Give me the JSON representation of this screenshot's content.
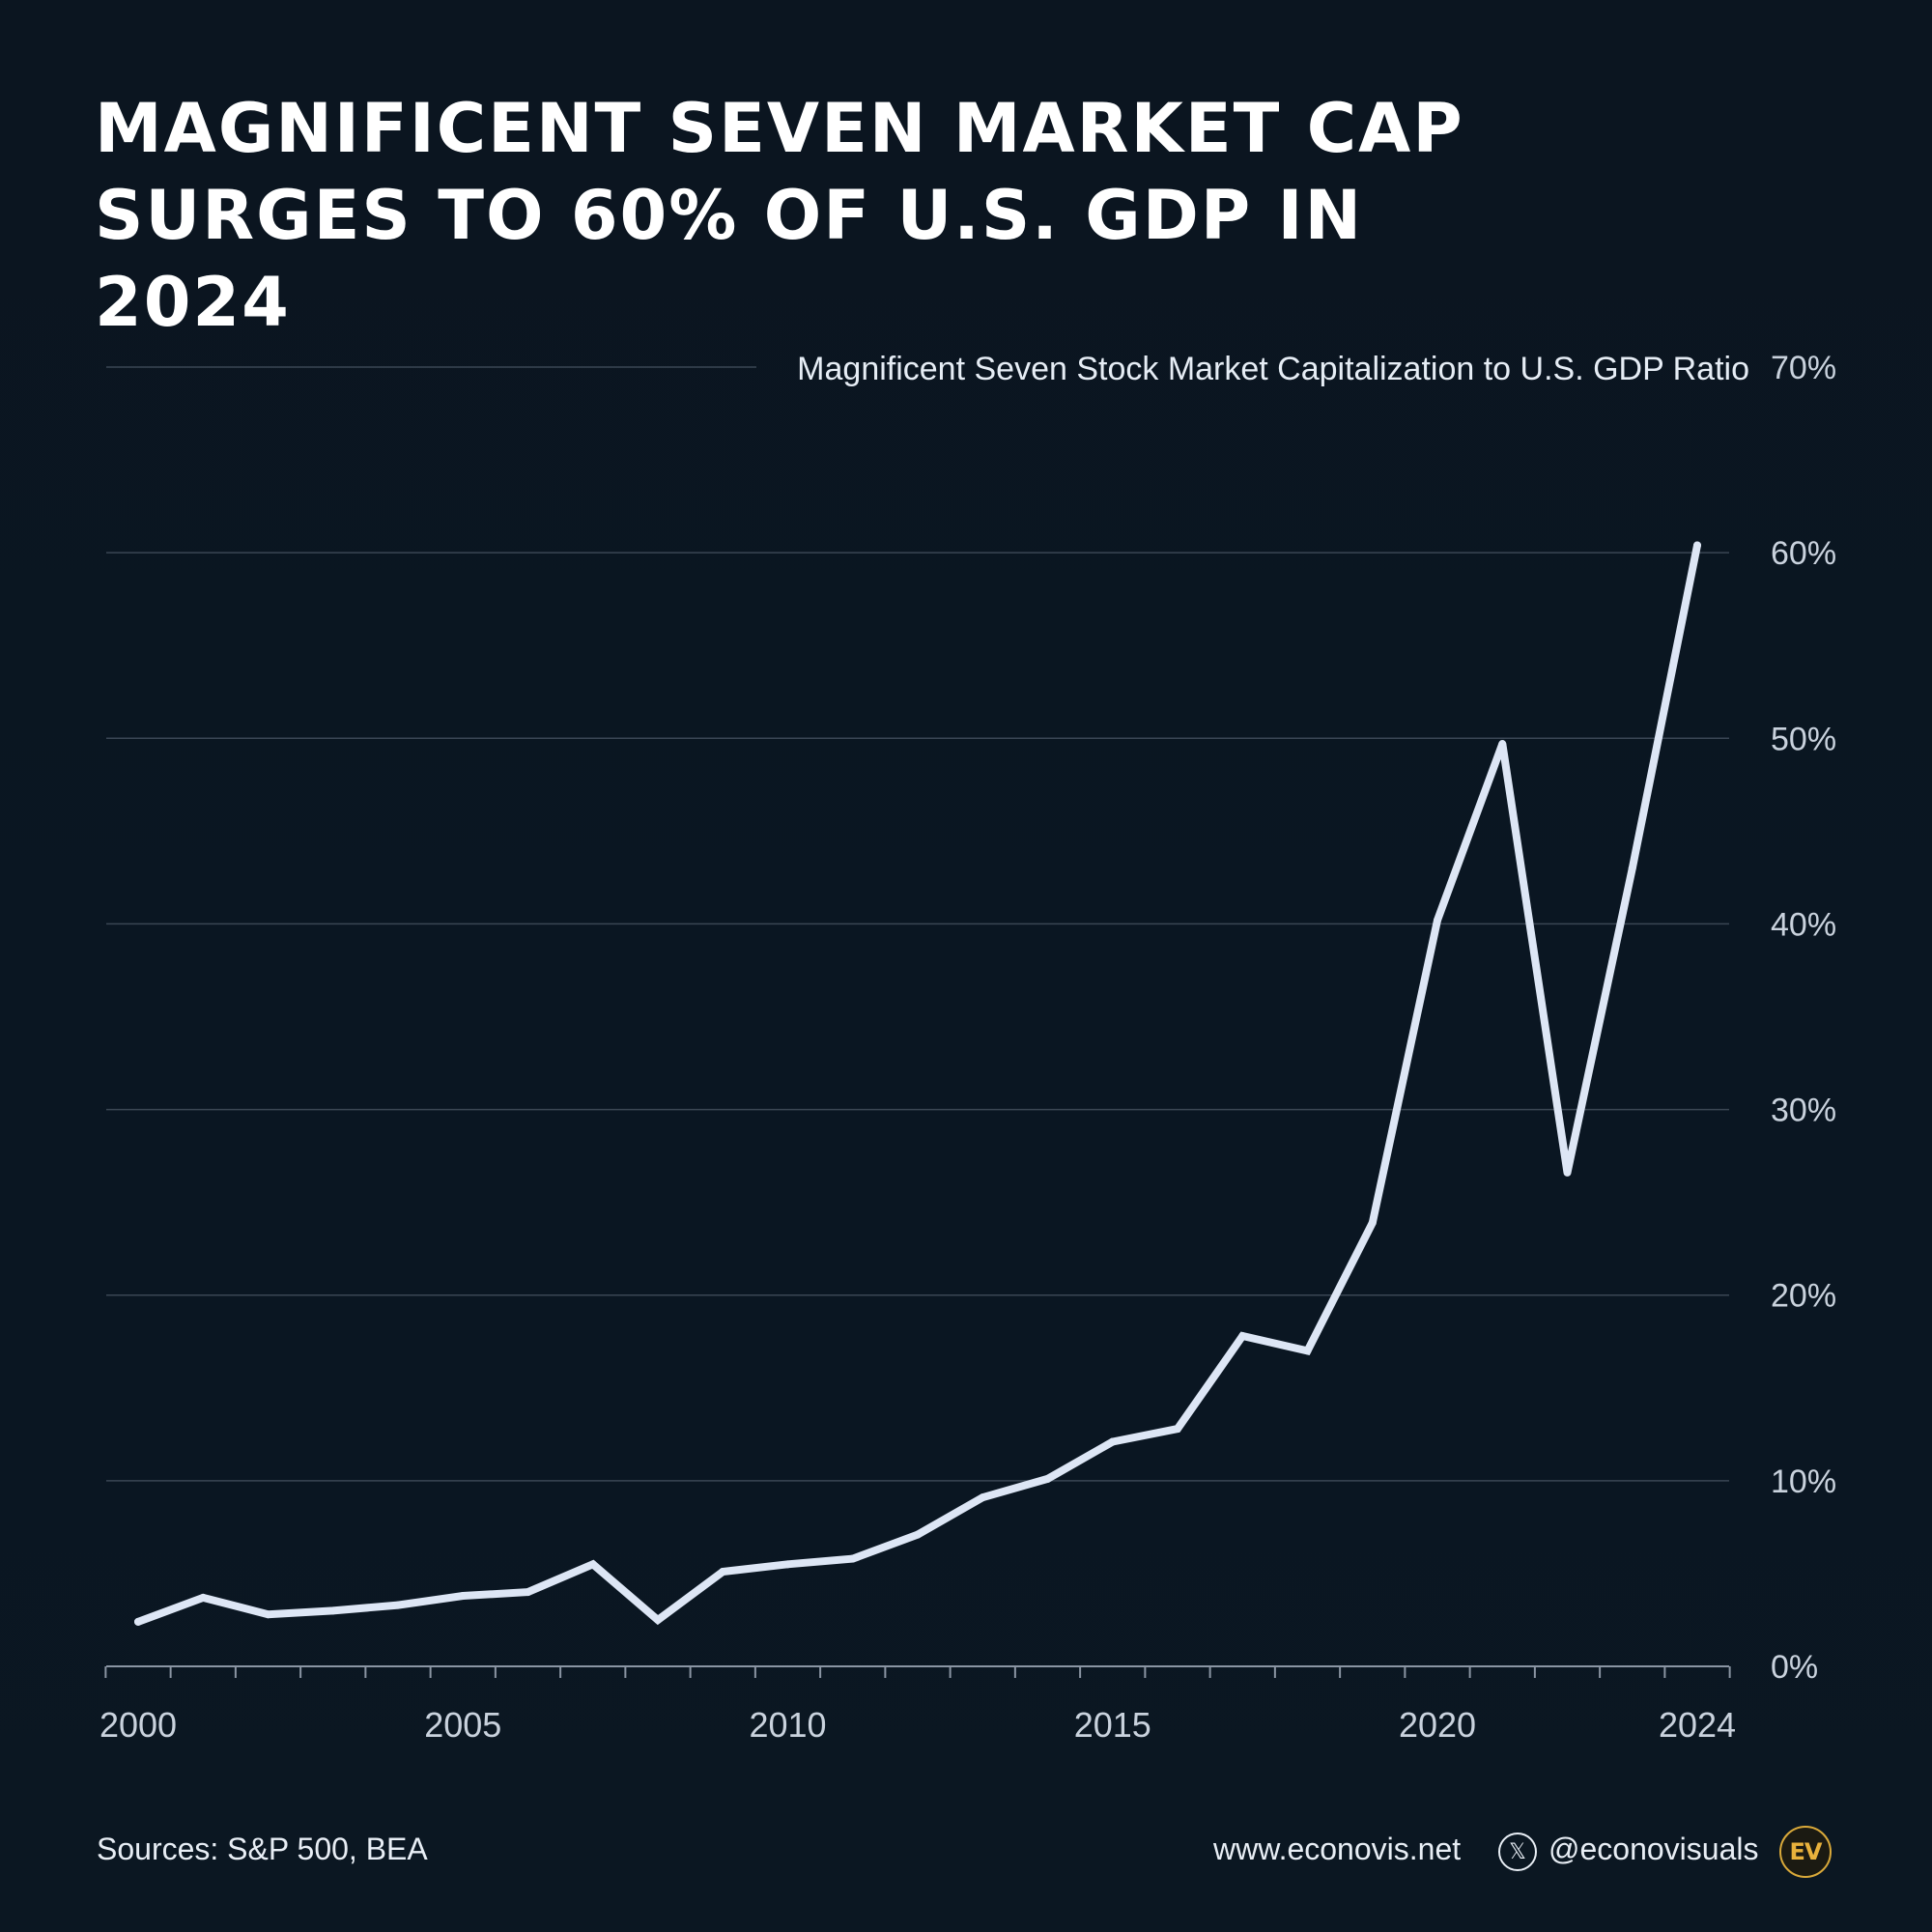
{
  "title_lines": [
    "MAGNIFICENT SEVEN MARKET CAP",
    "SURGES TO 60% OF U.S. GDP IN 2024"
  ],
  "footer": {
    "sources": "Sources: S&P 500, BEA",
    "website": "www.econovis.net",
    "handle": "@econovisuals",
    "x_icon": "x-logo-icon",
    "logo_text": "EV"
  },
  "colors": {
    "background": "#0b1521",
    "line": "#dde6f5",
    "gridline": "#3a4654",
    "text": "#e6edf5",
    "logo_accent": "#e8b13c"
  },
  "chart_data": {
    "type": "line",
    "series": [
      {
        "name": "Magnificent Seven Stock Market Capitalization to U.S. GDP Ratio",
        "x": [
          2000,
          2001,
          2002,
          2003,
          2004,
          2005,
          2006,
          2007,
          2008,
          2009,
          2010,
          2011,
          2012,
          2013,
          2014,
          2015,
          2016,
          2017,
          2018,
          2019,
          2020,
          2021,
          2022,
          2023,
          2024
        ],
        "values": [
          2.4,
          3.7,
          2.8,
          3.0,
          3.3,
          3.8,
          4.0,
          5.5,
          2.5,
          5.1,
          5.5,
          5.8,
          7.1,
          9.1,
          10.1,
          12.1,
          12.8,
          17.8,
          17.0,
          23.9,
          40.2,
          49.7,
          26.6,
          43.0,
          60.4
        ]
      }
    ],
    "xlim": [
      2000,
      2024
    ],
    "ylim": [
      0,
      70
    ],
    "y_ticks": [
      0,
      10,
      20,
      30,
      40,
      50,
      60,
      70
    ],
    "y_tick_labels": [
      "0%",
      "10%",
      "20%",
      "30%",
      "40%",
      "50%",
      "60%",
      "70%"
    ],
    "x_tick_labels": [
      {
        "value": 2000,
        "label": "2000"
      },
      {
        "value": 2005,
        "label": "2005"
      },
      {
        "value": 2010,
        "label": "2010"
      },
      {
        "value": 2015,
        "label": "2015"
      },
      {
        "value": 2020,
        "label": "2020"
      },
      {
        "value": 2024,
        "label": "2024"
      }
    ],
    "xlabel": "",
    "ylabel": "",
    "y_axis_side": "right",
    "grid": true
  }
}
